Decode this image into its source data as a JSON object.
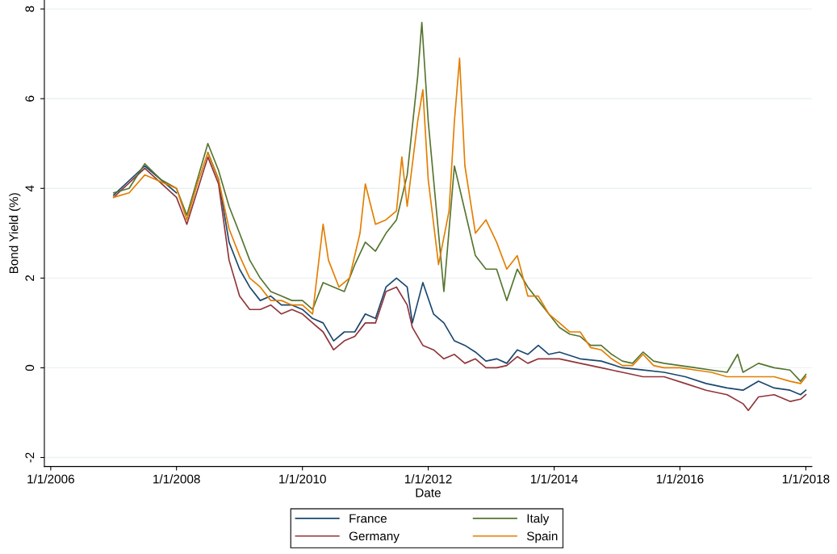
{
  "chart_data": {
    "type": "line",
    "xlabel": "Date",
    "ylabel": "Bond Yield (%)",
    "xlim": [
      "2005-11-25",
      "2018-02-05"
    ],
    "ylim": [
      -2.2,
      8.2
    ],
    "xticks": [
      {
        "value": "2006-01-01",
        "label": "1/1/2006"
      },
      {
        "value": "2008-01-01",
        "label": "1/1/2008"
      },
      {
        "value": "2010-01-01",
        "label": "1/1/2010"
      },
      {
        "value": "2012-01-01",
        "label": "1/1/2012"
      },
      {
        "value": "2014-01-01",
        "label": "1/1/2014"
      },
      {
        "value": "2016-01-01",
        "label": "1/1/2016"
      },
      {
        "value": "2018-01-01",
        "label": "1/1/2018"
      }
    ],
    "yticks": [
      {
        "value": -2,
        "label": "-2"
      },
      0,
      2,
      4,
      6,
      8
    ],
    "grid": "y",
    "legend": "bottom",
    "marker": "none",
    "line_style": "solid",
    "series": [
      {
        "name": "France",
        "color": "#1a476f",
        "x": [
          "2007-01",
          "2007-07",
          "2008-01",
          "2008-03",
          "2008-07",
          "2008-09",
          "2008-11",
          "2009-01",
          "2009-03",
          "2009-05",
          "2009-07",
          "2009-09",
          "2009-11",
          "2010-01",
          "2010-03",
          "2010-05",
          "2010-07",
          "2010-09",
          "2010-11",
          "2011-01",
          "2011-03",
          "2011-05",
          "2011-07",
          "2011-09",
          "2011-10",
          "2011-12",
          "2012-02",
          "2012-04",
          "2012-06",
          "2012-08",
          "2012-10",
          "2012-12",
          "2013-02",
          "2013-04",
          "2013-06",
          "2013-08",
          "2013-10",
          "2013-12",
          "2014-02",
          "2014-06",
          "2014-10",
          "2015-02",
          "2015-06",
          "2015-10",
          "2016-02",
          "2016-06",
          "2016-10",
          "2017-01",
          "2017-04",
          "2017-07",
          "2017-10",
          "2017-12",
          "2018-01"
        ],
        "values": [
          3.85,
          4.5,
          3.9,
          null,
          4.8,
          4.2,
          2.8,
          2.2,
          1.8,
          1.5,
          1.6,
          1.4,
          1.4,
          1.3,
          1.1,
          1.0,
          0.6,
          0.8,
          0.8,
          1.2,
          1.1,
          1.8,
          2.0,
          1.8,
          1.0,
          1.9,
          1.2,
          1.0,
          0.6,
          0.5,
          0.35,
          0.15,
          0.2,
          0.1,
          0.4,
          0.3,
          0.5,
          0.3,
          0.35,
          0.2,
          0.15,
          0.0,
          -0.05,
          -0.1,
          -0.2,
          -0.35,
          -0.45,
          -0.5,
          -0.3,
          -0.45,
          -0.5,
          -0.6,
          -0.5
        ]
      },
      {
        "name": "Germany",
        "color": "#90353b",
        "x": [
          "2007-01",
          "2007-07",
          "2008-01",
          "2008-03",
          "2008-07",
          "2008-09",
          "2008-11",
          "2009-01",
          "2009-03",
          "2009-05",
          "2009-07",
          "2009-09",
          "2009-11",
          "2010-01",
          "2010-03",
          "2010-05",
          "2010-07",
          "2010-09",
          "2010-11",
          "2011-01",
          "2011-03",
          "2011-05",
          "2011-07",
          "2011-09",
          "2011-10",
          "2011-12",
          "2012-02",
          "2012-04",
          "2012-06",
          "2012-08",
          "2012-10",
          "2012-12",
          "2013-02",
          "2013-04",
          "2013-06",
          "2013-08",
          "2013-10",
          "2013-12",
          "2014-02",
          "2014-06",
          "2014-10",
          "2015-02",
          "2015-06",
          "2015-10",
          "2016-02",
          "2016-06",
          "2016-10",
          "2017-01",
          "2017-02",
          "2017-04",
          "2017-07",
          "2017-10",
          "2017-12",
          "2018-01"
        ],
        "values": [
          3.8,
          4.45,
          3.8,
          3.2,
          4.7,
          4.1,
          2.4,
          1.6,
          1.3,
          1.3,
          1.4,
          1.2,
          1.3,
          1.2,
          1.0,
          0.8,
          0.4,
          0.6,
          0.7,
          1.0,
          1.0,
          1.7,
          1.8,
          1.4,
          0.9,
          0.5,
          0.4,
          0.2,
          0.3,
          0.1,
          0.2,
          0.0,
          0.0,
          0.05,
          0.25,
          0.1,
          0.2,
          0.2,
          0.2,
          0.1,
          0.0,
          -0.1,
          -0.2,
          -0.2,
          -0.35,
          -0.5,
          -0.6,
          -0.8,
          -0.95,
          -0.65,
          -0.6,
          -0.75,
          -0.7,
          -0.6
        ]
      },
      {
        "name": "Italy",
        "color": "#55752f",
        "x": [
          "2007-01",
          "2007-04",
          "2007-07",
          "2007-10",
          "2008-01",
          "2008-03",
          "2008-05",
          "2008-07",
          "2008-09",
          "2008-11",
          "2009-01",
          "2009-03",
          "2009-05",
          "2009-07",
          "2009-09",
          "2009-11",
          "2010-01",
          "2010-03",
          "2010-05",
          "2010-07",
          "2010-09",
          "2010-11",
          "2011-01",
          "2011-03",
          "2011-05",
          "2011-07",
          "2011-09",
          "2011-11",
          "2011-11-25",
          "2012-01",
          "2012-03",
          "2012-04",
          "2012-06",
          "2012-08",
          "2012-10",
          "2012-12",
          "2013-02",
          "2013-04",
          "2013-06",
          "2013-08",
          "2013-10",
          "2013-12",
          "2014-02",
          "2014-04",
          "2014-06",
          "2014-08",
          "2014-10",
          "2014-12",
          "2015-02",
          "2015-04",
          "2015-06",
          "2015-08",
          "2015-10",
          "2016-01",
          "2016-04",
          "2016-07",
          "2016-10",
          "2016-12",
          "2017-01",
          "2017-04",
          "2017-07",
          "2017-10",
          "2017-12",
          "2018-01"
        ],
        "values": [
          3.9,
          4.0,
          4.55,
          4.2,
          4.0,
          3.4,
          4.2,
          5.0,
          4.4,
          3.6,
          3.0,
          2.4,
          2.0,
          1.7,
          1.6,
          1.5,
          1.5,
          1.3,
          1.9,
          1.8,
          1.7,
          2.3,
          2.8,
          2.6,
          3.0,
          3.3,
          4.3,
          6.5,
          7.7,
          5.5,
          3.0,
          1.7,
          4.5,
          3.5,
          2.5,
          2.2,
          2.2,
          1.5,
          2.2,
          1.8,
          1.5,
          1.2,
          0.9,
          0.75,
          0.7,
          0.5,
          0.5,
          0.3,
          0.15,
          0.1,
          0.35,
          0.15,
          0.1,
          0.05,
          0.0,
          -0.05,
          -0.1,
          0.3,
          -0.1,
          0.1,
          0.0,
          -0.05,
          -0.3,
          -0.15
        ]
      },
      {
        "name": "Spain",
        "color": "#e37e00",
        "x": [
          "2007-01",
          "2007-04",
          "2007-07",
          "2007-10",
          "2008-01",
          "2008-03",
          "2008-05",
          "2008-07",
          "2008-09",
          "2008-11",
          "2009-01",
          "2009-03",
          "2009-05",
          "2009-07",
          "2009-09",
          "2009-11",
          "2010-01",
          "2010-03",
          "2010-05",
          "2010-06",
          "2010-08",
          "2010-10",
          "2010-12",
          "2011-01",
          "2011-03",
          "2011-05",
          "2011-07",
          "2011-08",
          "2011-09",
          "2011-11",
          "2011-12",
          "2012-01",
          "2012-03",
          "2012-05",
          "2012-06",
          "2012-07",
          "2012-08",
          "2012-10",
          "2012-12",
          "2013-02",
          "2013-04",
          "2013-06",
          "2013-08",
          "2013-10",
          "2013-12",
          "2014-02",
          "2014-04",
          "2014-06",
          "2014-08",
          "2014-10",
          "2014-12",
          "2015-02",
          "2015-04",
          "2015-06",
          "2015-08",
          "2015-10",
          "2016-01",
          "2016-04",
          "2016-07",
          "2016-10",
          "2017-01",
          "2017-04",
          "2017-07",
          "2017-10",
          "2017-12",
          "2018-01"
        ],
        "values": [
          3.8,
          3.9,
          4.3,
          4.15,
          4.0,
          3.3,
          4.1,
          4.8,
          4.2,
          3.1,
          2.5,
          2.0,
          1.8,
          1.5,
          1.5,
          1.4,
          1.4,
          1.2,
          3.2,
          2.4,
          1.8,
          2.0,
          3.0,
          4.1,
          3.2,
          3.3,
          3.5,
          4.7,
          3.6,
          5.5,
          6.2,
          4.2,
          2.3,
          3.5,
          5.5,
          6.9,
          4.5,
          3.0,
          3.3,
          2.8,
          2.2,
          2.5,
          1.6,
          1.6,
          1.2,
          1.0,
          0.8,
          0.8,
          0.45,
          0.4,
          0.2,
          0.05,
          0.05,
          0.3,
          0.05,
          0.0,
          0.0,
          -0.05,
          -0.1,
          -0.2,
          -0.2,
          -0.2,
          -0.2,
          -0.3,
          -0.35,
          -0.2
        ]
      }
    ]
  }
}
